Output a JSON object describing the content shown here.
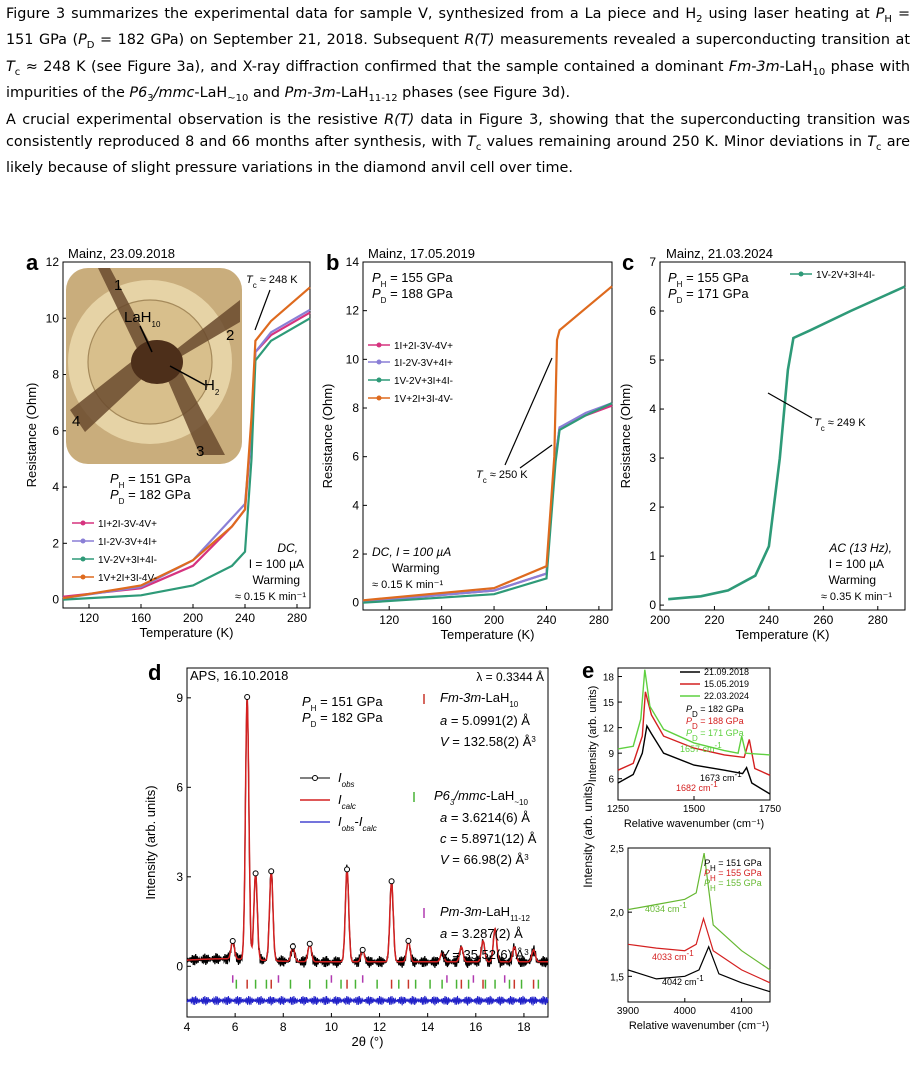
{
  "text": {
    "p1": [
      "Figure 3 summarizes the experimental data for sample V, synthesized from a La piece and H",
      {
        "sub": "2"
      },
      " using laser heating at ",
      {
        "i": "P"
      },
      {
        "sub": "H"
      },
      " = 151 GPa (",
      {
        "i": "P"
      },
      {
        "sub": "D"
      },
      " = 182 GPa) on September 21, 2018. Subsequent ",
      {
        "i": "R(T)"
      },
      " measurements revealed a superconducting transition at ",
      {
        "i": "T"
      },
      {
        "sub": "c"
      },
      " ≈ 248 K (see Figure 3a), and X-ray diffraction confirmed that the sample contained a dominant ",
      {
        "i": "Fm-3m"
      },
      "-LaH",
      {
        "sub": "10"
      },
      " phase with impurities of the ",
      {
        "i": "P6"
      },
      {
        "sub": "3"
      },
      {
        "i": "/mmc"
      },
      "-LaH",
      {
        "sub": "~10"
      },
      " and ",
      {
        "i": "Pm-3m"
      },
      "-LaH",
      {
        "sub": "11-12"
      },
      " phases (see Figure 3d)."
    ],
    "p2": [
      "A crucial experimental observation is the resistive ",
      {
        "i": "R(T)"
      },
      " data in Figure 3, showing that the superconducting transition was consistently reproduced 8 and 66 months after synthesis, with ",
      {
        "i": "T"
      },
      {
        "sub": "c"
      },
      " values remaining around 250 K. Minor deviations in ",
      {
        "i": "T"
      },
      {
        "sub": "c"
      },
      " are likely because of slight pressure variations in the diamond anvil cell over time."
    ]
  },
  "colors": {
    "pink": "#d6337f",
    "purple": "#8a7fd6",
    "teal": "#2e9a78",
    "orange": "#de6a1e",
    "black": "#000000",
    "red": "#d42020",
    "blue": "#2020c8",
    "green": "#49b335",
    "lightgreen": "#5fd040",
    "vgreen": "#66b832"
  },
  "chart_data": [
    {
      "panel": "a",
      "type": "line",
      "title": "Mainz, 23.09.2018",
      "xlabel": "Temperature (K)",
      "ylabel": "Resistance (Ohm)",
      "xlim": [
        100,
        290
      ],
      "ylim": [
        -0.3,
        12
      ],
      "xticks": [
        120,
        160,
        200,
        240,
        280
      ],
      "yticks": [
        0,
        2,
        4,
        6,
        8,
        10,
        12
      ],
      "inset_labels": {
        "n1": "1",
        "n2": "2",
        "n3": "3",
        "n4": "4",
        "sample": "LaH₁₀",
        "h2": "H₂"
      },
      "annotations": {
        "tc": "T_c ≈ 248 K",
        "ph": "P_H = 151 GPa",
        "pd": "P_D = 182 GPa",
        "mode": "DC,",
        "current": "I = 100 µA",
        "warming": "Warming",
        "rate": "≈ 0.15 K min⁻¹"
      },
      "series": [
        {
          "name": "1I+2I-3V-4V+",
          "color": "pink",
          "points": [
            [
              100,
              0.1
            ],
            [
              160,
              0.4
            ],
            [
              200,
              1.2
            ],
            [
              230,
              2.6
            ],
            [
              240,
              3.2
            ],
            [
              245,
              6
            ],
            [
              248,
              8.8
            ],
            [
              260,
              9.4
            ],
            [
              290,
              10.2
            ]
          ]
        },
        {
          "name": "1I-2V-3V+4I+",
          "color": "purple",
          "points": [
            [
              100,
              0.05
            ],
            [
              160,
              0.45
            ],
            [
              200,
              1.4
            ],
            [
              230,
              2.9
            ],
            [
              240,
              3.4
            ],
            [
              245,
              6
            ],
            [
              248,
              8.8
            ],
            [
              260,
              9.5
            ],
            [
              290,
              10.3
            ]
          ]
        },
        {
          "name": "1V-2V+3I+4I-",
          "color": "teal",
          "points": [
            [
              100,
              0.0
            ],
            [
              160,
              0.15
            ],
            [
              200,
              0.5
            ],
            [
              230,
              1.2
            ],
            [
              240,
              1.7
            ],
            [
              245,
              5
            ],
            [
              248,
              8.5
            ],
            [
              260,
              9.2
            ],
            [
              290,
              10.0
            ]
          ]
        },
        {
          "name": "1V+2I+3I-4V-",
          "color": "orange",
          "points": [
            [
              100,
              0.05
            ],
            [
              160,
              0.5
            ],
            [
              200,
              1.4
            ],
            [
              230,
              2.6
            ],
            [
              240,
              3.2
            ],
            [
              245,
              6.5
            ],
            [
              248,
              9.2
            ],
            [
              260,
              9.9
            ],
            [
              290,
              11.1
            ]
          ]
        }
      ]
    },
    {
      "panel": "b",
      "type": "line",
      "title": "Mainz, 17.05.2019",
      "xlabel": "Temperature (K)",
      "ylabel": "Resistance (Ohm)",
      "xlim": [
        100,
        290
      ],
      "ylim": [
        -0.3,
        14
      ],
      "xticks": [
        120,
        160,
        200,
        240,
        280
      ],
      "yticks": [
        0,
        2,
        4,
        6,
        8,
        10,
        12,
        14
      ],
      "annotations": {
        "ph": "P_H = 155 GPa",
        "pd": "P_D = 188 GPa",
        "tc": "T_c ≈ 250 K",
        "mode": "DC, I = 100 µA",
        "warming": "Warming",
        "rate": "≈ 0.15 K min⁻¹"
      },
      "series": [
        {
          "name": "1I+2I-3V-4V+",
          "color": "pink",
          "points": [
            [
              100,
              0.05
            ],
            [
              200,
              0.5
            ],
            [
              240,
              1.2
            ],
            [
              247,
              6
            ],
            [
              250,
              7.2
            ],
            [
              270,
              7.7
            ],
            [
              290,
              8.1
            ]
          ]
        },
        {
          "name": "1I-2V-3V+4I+",
          "color": "purple",
          "points": [
            [
              100,
              0.05
            ],
            [
              200,
              0.5
            ],
            [
              240,
              1.2
            ],
            [
              247,
              6
            ],
            [
              250,
              7.2
            ],
            [
              270,
              7.8
            ],
            [
              290,
              8.2
            ]
          ]
        },
        {
          "name": "1V-2V+3I+4I-",
          "color": "teal",
          "points": [
            [
              100,
              0.0
            ],
            [
              200,
              0.35
            ],
            [
              240,
              1.0
            ],
            [
              247,
              5.8
            ],
            [
              250,
              7.1
            ],
            [
              270,
              7.7
            ],
            [
              290,
              8.2
            ]
          ]
        },
        {
          "name": "1V+2I+3I-4V-",
          "color": "orange",
          "points": [
            [
              100,
              0.1
            ],
            [
              200,
              0.6
            ],
            [
              240,
              1.5
            ],
            [
              246,
              6
            ],
            [
              248,
              10.8
            ],
            [
              250,
              11.2
            ],
            [
              270,
              12.1
            ],
            [
              290,
              13.0
            ]
          ]
        }
      ]
    },
    {
      "panel": "c",
      "type": "line",
      "title": "Mainz, 21.03.2024",
      "xlabel": "Temperature (K)",
      "ylabel": "Resistance (Ohm)",
      "xlim": [
        200,
        290
      ],
      "ylim": [
        -0.1,
        7
      ],
      "xticks": [
        200,
        220,
        240,
        260,
        280
      ],
      "yticks": [
        0,
        1,
        2,
        3,
        4,
        5,
        6,
        7
      ],
      "annotations": {
        "ph": "P_H = 155 GPa",
        "pd": "P_D = 171 GPa",
        "tc": "T_c ≈ 249 K",
        "mode": "AC (13 Hz),",
        "current": "I = 100 µA",
        "warming": "Warming",
        "rate": "≈ 0.35 K min⁻¹"
      },
      "series": [
        {
          "name": "1V-2V+3I+4I-",
          "color": "teal",
          "points": [
            [
              203,
              0.12
            ],
            [
              215,
              0.18
            ],
            [
              225,
              0.3
            ],
            [
              235,
              0.6
            ],
            [
              240,
              1.2
            ],
            [
              244,
              3.0
            ],
            [
              247,
              4.8
            ],
            [
              249,
              5.45
            ],
            [
              255,
              5.6
            ],
            [
              270,
              6.0
            ],
            [
              290,
              6.5
            ]
          ]
        }
      ]
    },
    {
      "panel": "d",
      "type": "line",
      "title": "APS, 16.10.2018",
      "xlabel": "2θ (°)",
      "ylabel": "Intensity (arb. units)",
      "xlim": [
        4,
        19
      ],
      "ylim": [
        -1.7,
        10
      ],
      "xticks": [
        4,
        6,
        8,
        10,
        12,
        14,
        16,
        18
      ],
      "yticks": [
        0,
        3,
        6,
        9
      ],
      "annotations": {
        "wavelength": "λ = 0.3344 Å",
        "ph": "P_H = 151 GPa",
        "pd": "P_D = 182 GPa",
        "phase1": "Fm-3m-LaH₁₀",
        "phase1_a": "a = 5.0991(2) Å",
        "phase1_v": "V = 132.58(2) Å³",
        "phase2": "P6₃/mmc-LaH₋₁₀",
        "phase2_a": "a = 3.6214(6) Å",
        "phase2_c": "c = 5.8971(12) Å",
        "phase2_v": "V = 66.98(2) Å³",
        "phase3": "Pm-3m-LaH₁₁₋₁₂",
        "phase3_a": "a = 3.287(2) Å",
        "phase3_v": "V = 35.52(6) Å³"
      },
      "series": [
        {
          "name": "I_obs",
          "color": "black"
        },
        {
          "name": "I_calc",
          "color": "red"
        },
        {
          "name": "I_obs-I_calc",
          "color": "blue"
        }
      ],
      "peaks": [
        [
          5.9,
          0.6
        ],
        [
          6.5,
          8.8
        ],
        [
          6.85,
          2.9
        ],
        [
          7.5,
          3.0
        ],
        [
          8.4,
          0.5
        ],
        [
          9.1,
          0.6
        ],
        [
          10.65,
          3.1
        ],
        [
          11.3,
          0.4
        ],
        [
          12.5,
          2.7
        ],
        [
          13.2,
          0.7
        ],
        [
          14.6,
          0.3
        ],
        [
          15.4,
          0.5
        ],
        [
          16.3,
          0.7
        ],
        [
          16.8,
          1.1
        ],
        [
          17.6,
          0.5
        ],
        [
          18.4,
          0.4
        ]
      ],
      "tick_positions": {
        "red": [
          6.5,
          7.5,
          10.65,
          12.5,
          13.2,
          15.4,
          16.3,
          17.6,
          18.4
        ],
        "magenta": [
          5.9,
          7.8,
          10.0,
          11.3,
          14.8,
          15.9,
          17.2
        ],
        "green": [
          6.05,
          6.85,
          7.3,
          8.3,
          9.1,
          9.8,
          10.4,
          11.0,
          11.9,
          12.8,
          13.5,
          14.1,
          14.6,
          15.2,
          15.7,
          16.4,
          16.8,
          17.4,
          17.9,
          18.6
        ]
      }
    },
    {
      "panel": "e1",
      "type": "line",
      "xlabel": "Relative wavenumber (cm⁻¹)",
      "ylabel": "Intensity (arb. units)",
      "xlim": [
        1250,
        1750
      ],
      "ylim": [
        3.5,
        19
      ],
      "xticks": [
        1250,
        1500,
        1750
      ],
      "yticks": [
        6,
        9,
        12,
        15,
        18
      ],
      "annotations": {
        "a1": "1657 cm⁻¹",
        "a2": "1682 cm⁻¹",
        "a3": "1673 cm⁻¹",
        "pd1": "P_D = 182 GPa",
        "pd2": "P_D = 188 GPa",
        "pd3": "P_D = 171 GPa"
      },
      "series": [
        {
          "name": "21.09.2018",
          "color": "black",
          "points": [
            [
              1250,
              5.5
            ],
            [
              1300,
              6.5
            ],
            [
              1330,
              9
            ],
            [
              1345,
              12.2
            ],
            [
              1360,
              11.3
            ],
            [
              1400,
              9.0
            ],
            [
              1500,
              7.6
            ],
            [
              1600,
              7.0
            ],
            [
              1660,
              6.6
            ],
            [
              1673,
              7.3
            ],
            [
              1690,
              5.5
            ],
            [
              1750,
              4.2
            ]
          ]
        },
        {
          "name": "15.05.2019",
          "color": "red",
          "points": [
            [
              1250,
              7.0
            ],
            [
              1300,
              7.8
            ],
            [
              1330,
              11
            ],
            [
              1340,
              16.2
            ],
            [
              1360,
              13.5
            ],
            [
              1400,
              11.0
            ],
            [
              1500,
              9.6
            ],
            [
              1600,
              8.8
            ],
            [
              1665,
              8.5
            ],
            [
              1682,
              10.6
            ],
            [
              1700,
              7.2
            ],
            [
              1750,
              6.4
            ]
          ]
        },
        {
          "name": "22.03.2024",
          "color": "lightgreen",
          "points": [
            [
              1250,
              9.5
            ],
            [
              1300,
              9.8
            ],
            [
              1325,
              13
            ],
            [
              1338,
              18.8
            ],
            [
              1355,
              14.5
            ],
            [
              1400,
              11.8
            ],
            [
              1500,
              10.2
            ],
            [
              1600,
              9.3
            ],
            [
              1645,
              9.0
            ],
            [
              1657,
              11.0
            ],
            [
              1670,
              9.0
            ],
            [
              1750,
              8.8
            ]
          ]
        }
      ]
    },
    {
      "panel": "e2",
      "type": "line",
      "xlabel": "Relative wavenumber (cm⁻¹)",
      "ylabel": "",
      "xlim": [
        3900,
        4150
      ],
      "ylim": [
        1.3,
        2.5
      ],
      "xticks": [
        3900,
        4000,
        4100
      ],
      "yticks": [
        1.5,
        2.0,
        2.5
      ],
      "ytick_labels": [
        "1,5",
        "2,0",
        "2,5"
      ],
      "annotations": {
        "a1": "4034 cm⁻¹",
        "a2": "4033 cm⁻¹",
        "a3": "4042 cm⁻¹",
        "ph1": "P_H = 151 GPa",
        "ph2": "P_H = 155 GPa",
        "ph3": "P_H = 155 GPa"
      },
      "series": [
        {
          "name": "P_H = 151 GPa",
          "color": "black",
          "points": [
            [
              3900,
              1.55
            ],
            [
              3950,
              1.48
            ],
            [
              4000,
              1.5
            ],
            [
              4025,
              1.55
            ],
            [
              4042,
              1.73
            ],
            [
              4060,
              1.52
            ],
            [
              4100,
              1.45
            ],
            [
              4150,
              1.38
            ]
          ]
        },
        {
          "name": "P_H = 155 GPa",
          "color": "red",
          "points": [
            [
              3900,
              1.75
            ],
            [
              3950,
              1.72
            ],
            [
              4000,
              1.7
            ],
            [
              4020,
              1.75
            ],
            [
              4033,
              1.95
            ],
            [
              4050,
              1.7
            ],
            [
              4100,
              1.55
            ],
            [
              4150,
              1.45
            ]
          ]
        },
        {
          "name": "P_H = 155 GPa (2024)",
          "color": "vgreen",
          "points": [
            [
              3900,
              2.02
            ],
            [
              3950,
              2.06
            ],
            [
              4000,
              2.1
            ],
            [
              4020,
              2.15
            ],
            [
              4034,
              2.46
            ],
            [
              4050,
              1.9
            ],
            [
              4100,
              1.7
            ],
            [
              4150,
              1.55
            ]
          ]
        }
      ]
    }
  ]
}
